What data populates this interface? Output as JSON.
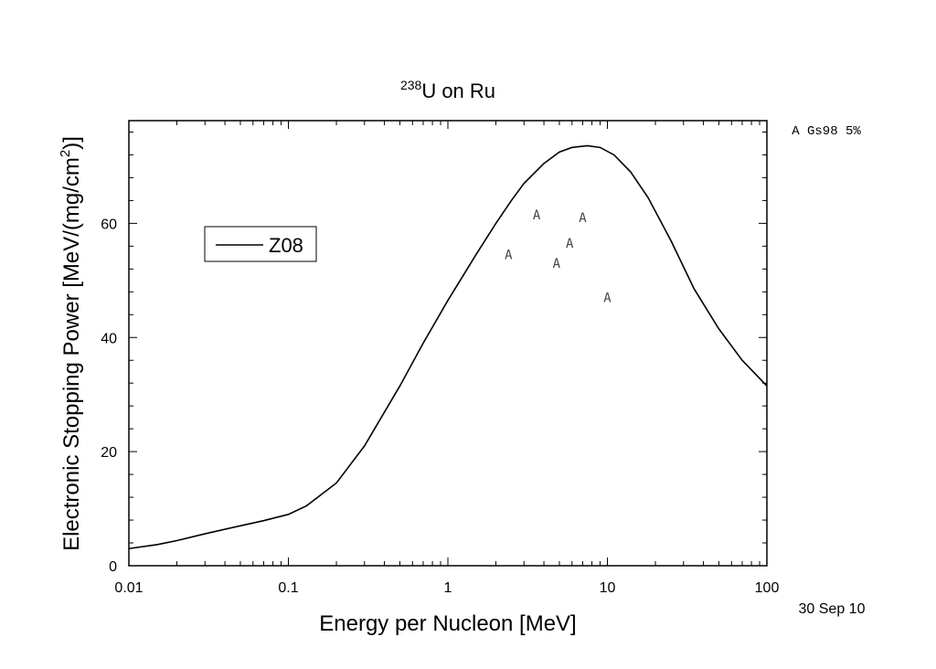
{
  "chart_data": {
    "type": "line",
    "title_isotope": "238",
    "title_rest": "U on Ru",
    "xlabel": "Energy per Nucleon [MeV]",
    "ylabel_main": "Electronic Stopping Power [MeV/(mg/cm",
    "ylabel_sup": "2",
    "ylabel_end": ")]",
    "x_scale": "log",
    "xlim": [
      0.01,
      100
    ],
    "ylim": [
      0,
      78
    ],
    "x_ticks": [
      0.01,
      0.1,
      1,
      10,
      100
    ],
    "x_tick_labels": [
      "0.01",
      "0.1",
      "1",
      "10",
      "100"
    ],
    "y_ticks": [
      0,
      20,
      40,
      60
    ],
    "y_tick_labels": [
      "0",
      "20",
      "40",
      "60"
    ],
    "grid": false,
    "legend_position": "upper-left",
    "series": [
      {
        "name": "Z08",
        "style": "line",
        "color": "#000000",
        "points": [
          [
            0.01,
            3.0
          ],
          [
            0.015,
            3.7
          ],
          [
            0.02,
            4.4
          ],
          [
            0.03,
            5.6
          ],
          [
            0.05,
            7.0
          ],
          [
            0.07,
            7.9
          ],
          [
            0.1,
            9.0
          ],
          [
            0.13,
            10.5
          ],
          [
            0.2,
            14.5
          ],
          [
            0.3,
            21.0
          ],
          [
            0.5,
            31.5
          ],
          [
            0.7,
            39.0
          ],
          [
            1.0,
            46.5
          ],
          [
            1.5,
            54.5
          ],
          [
            2.0,
            60.0
          ],
          [
            2.5,
            64.0
          ],
          [
            3.0,
            67.0
          ],
          [
            4.0,
            70.5
          ],
          [
            5.0,
            72.5
          ],
          [
            6.0,
            73.3
          ],
          [
            7.5,
            73.6
          ],
          [
            9.0,
            73.3
          ],
          [
            11.0,
            72.0
          ],
          [
            14.0,
            69.0
          ],
          [
            18.0,
            64.5
          ],
          [
            25.0,
            57.0
          ],
          [
            35.0,
            48.5
          ],
          [
            50.0,
            41.5
          ],
          [
            70.0,
            36.0
          ],
          [
            100.0,
            31.5
          ]
        ]
      },
      {
        "name": "A",
        "style": "marker",
        "marker_symbol": "A",
        "color": "#444444",
        "points": [
          [
            2.4,
            54.5
          ],
          [
            3.6,
            61.5
          ],
          [
            4.8,
            53.0
          ],
          [
            5.8,
            56.5
          ],
          [
            7.0,
            61.0
          ],
          [
            10.0,
            47.0
          ]
        ]
      }
    ],
    "legend_entries": [
      {
        "label": "Z08"
      }
    ],
    "side_note": "A Gs98  5%",
    "date_note": "30 Sep 10"
  }
}
